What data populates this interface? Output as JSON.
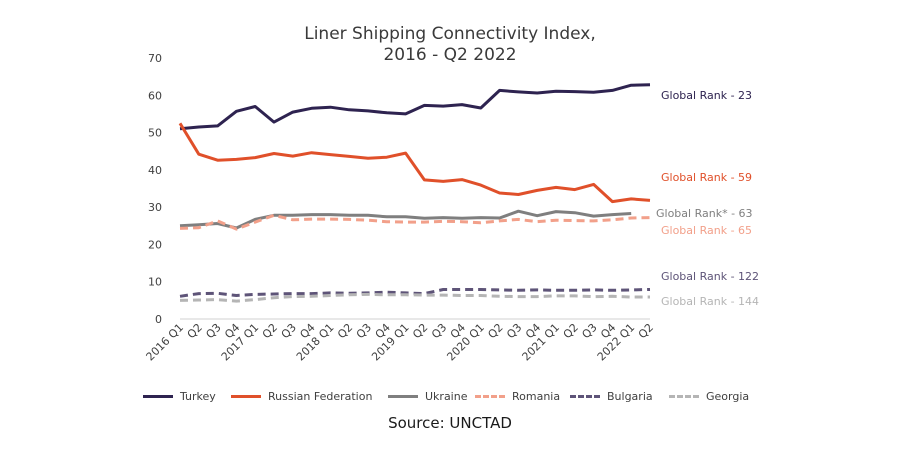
{
  "chart_data": {
    "type": "line",
    "title_line1": "Liner Shipping Connectivity Index,",
    "title_line2": "2016 - Q2 2022",
    "source": "Source: UNCTAD",
    "xlabel": "",
    "ylabel": "",
    "ylim": [
      0,
      70
    ],
    "yticks": [
      0,
      10,
      20,
      30,
      40,
      50,
      60,
      70
    ],
    "grid": false,
    "legend_position": "bottom",
    "categories": [
      "2016 Q1",
      "Q2",
      "Q3",
      "Q4",
      "2017 Q1",
      "Q2",
      "Q3",
      "Q4",
      "2018 Q1",
      "Q2",
      "Q3",
      "Q4",
      "2019 Q1",
      "Q2",
      "Q3",
      "Q4",
      "2020 Q1",
      "Q2",
      "Q3",
      "Q4",
      "2021 Q1",
      "Q2",
      "Q3",
      "Q4",
      "2022 Q1",
      "Q2"
    ],
    "series": [
      {
        "name": "Turkey",
        "color": "#2e2350",
        "dash": "solid",
        "end_label": "Global Rank - 23",
        "values": [
          51,
          51.5,
          51.8,
          55.7,
          57,
          52.8,
          55.5,
          56.5,
          56.8,
          56.1,
          55.8,
          55.3,
          55,
          57.3,
          57.1,
          57.5,
          56.6,
          61.3,
          60.9,
          60.6,
          61.1,
          61,
          60.8,
          61.3,
          62.7,
          62.8
        ]
      },
      {
        "name": "Russian Federation",
        "color": "#e0502a",
        "dash": "solid",
        "end_label": "Global Rank - 59",
        "values": [
          52.5,
          44.2,
          42.6,
          42.8,
          43.3,
          44.4,
          43.7,
          44.6,
          44.1,
          43.6,
          43.1,
          43.4,
          44.5,
          37.3,
          36.9,
          37.4,
          35.9,
          33.8,
          33.4,
          34.5,
          35.3,
          34.7,
          36.1,
          31.5,
          32.2,
          31.8
        ]
      },
      {
        "name": "Ukraine",
        "color": "#7f7f7f",
        "dash": "solid",
        "end_label": "Global Rank* - 63",
        "values": [
          25,
          25.3,
          25.6,
          24.4,
          26.7,
          27.8,
          27.8,
          28,
          28,
          27.8,
          27.8,
          27.4,
          27.4,
          27,
          27.2,
          27,
          27.2,
          27.1,
          28.9,
          27.7,
          28.8,
          28.5,
          27.6,
          28,
          28.3,
          null
        ]
      },
      {
        "name": "Romania",
        "color": "#f2a08a",
        "dash": "dashed",
        "end_label": "Global Rank - 65",
        "values": [
          24.3,
          24.5,
          26.3,
          24.1,
          26,
          27.8,
          26.6,
          26.8,
          26.8,
          26.7,
          26.5,
          26.1,
          26,
          26,
          26.2,
          26.1,
          25.8,
          26.3,
          26.7,
          26.1,
          26.5,
          26.4,
          26.3,
          26.6,
          27.1,
          27.2
        ]
      },
      {
        "name": "Bulgaria",
        "color": "#5e5478",
        "dash": "dashed",
        "end_label": "Global Rank - 122",
        "values": [
          6.1,
          6.8,
          6.9,
          6.3,
          6.6,
          6.7,
          6.8,
          6.8,
          7,
          6.9,
          7,
          7.2,
          7,
          6.8,
          7.9,
          7.9,
          7.9,
          7.8,
          7.7,
          7.8,
          7.7,
          7.7,
          7.8,
          7.7,
          7.8,
          7.9
        ]
      },
      {
        "name": "Georgia",
        "color": "#b5b5b5",
        "dash": "dashed",
        "end_label": "Global Rank - 144",
        "values": [
          5,
          5.1,
          5.2,
          4.8,
          5.2,
          5.7,
          6,
          6.1,
          6.3,
          6.5,
          6.6,
          6.5,
          6.5,
          6.4,
          6.4,
          6.3,
          6.3,
          6.1,
          6,
          6,
          6.2,
          6.2,
          6,
          6.1,
          5.9,
          5.9
        ]
      }
    ]
  }
}
